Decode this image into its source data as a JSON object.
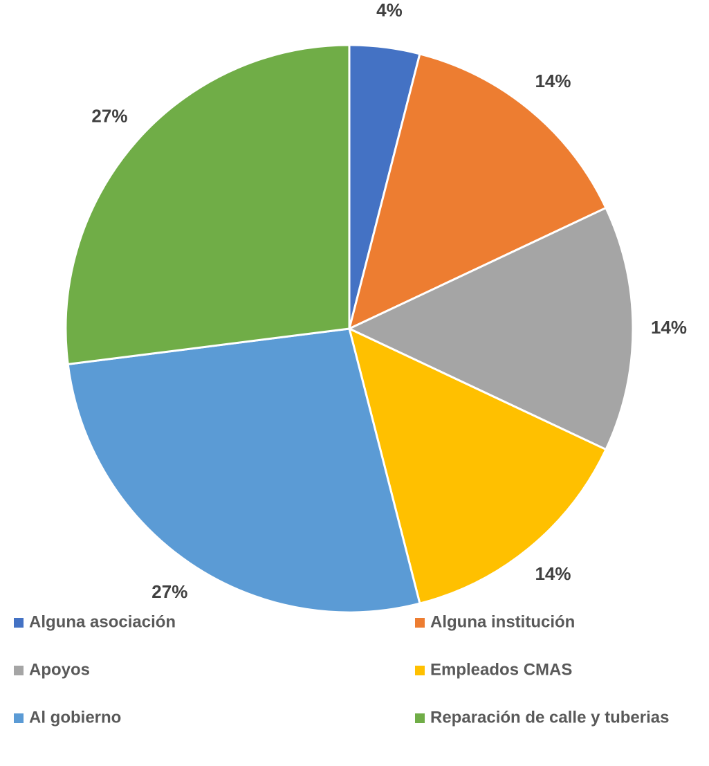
{
  "chart_data": {
    "type": "pie",
    "categories": [
      "Alguna asociación",
      "Alguna institución",
      "Apoyos",
      "Empleados CMAS",
      "Al gobierno",
      "Reparación de calle y tuberias"
    ],
    "values": [
      4,
      14,
      14,
      14,
      27,
      27
    ],
    "value_labels": [
      "4%",
      "14%",
      "14%",
      "14%",
      "27%",
      "27%"
    ],
    "colors": [
      "#4472c4",
      "#ed7d31",
      "#a5a5a5",
      "#ffc000",
      "#5b9bd5",
      "#70ad47"
    ],
    "legend": "bottom"
  }
}
